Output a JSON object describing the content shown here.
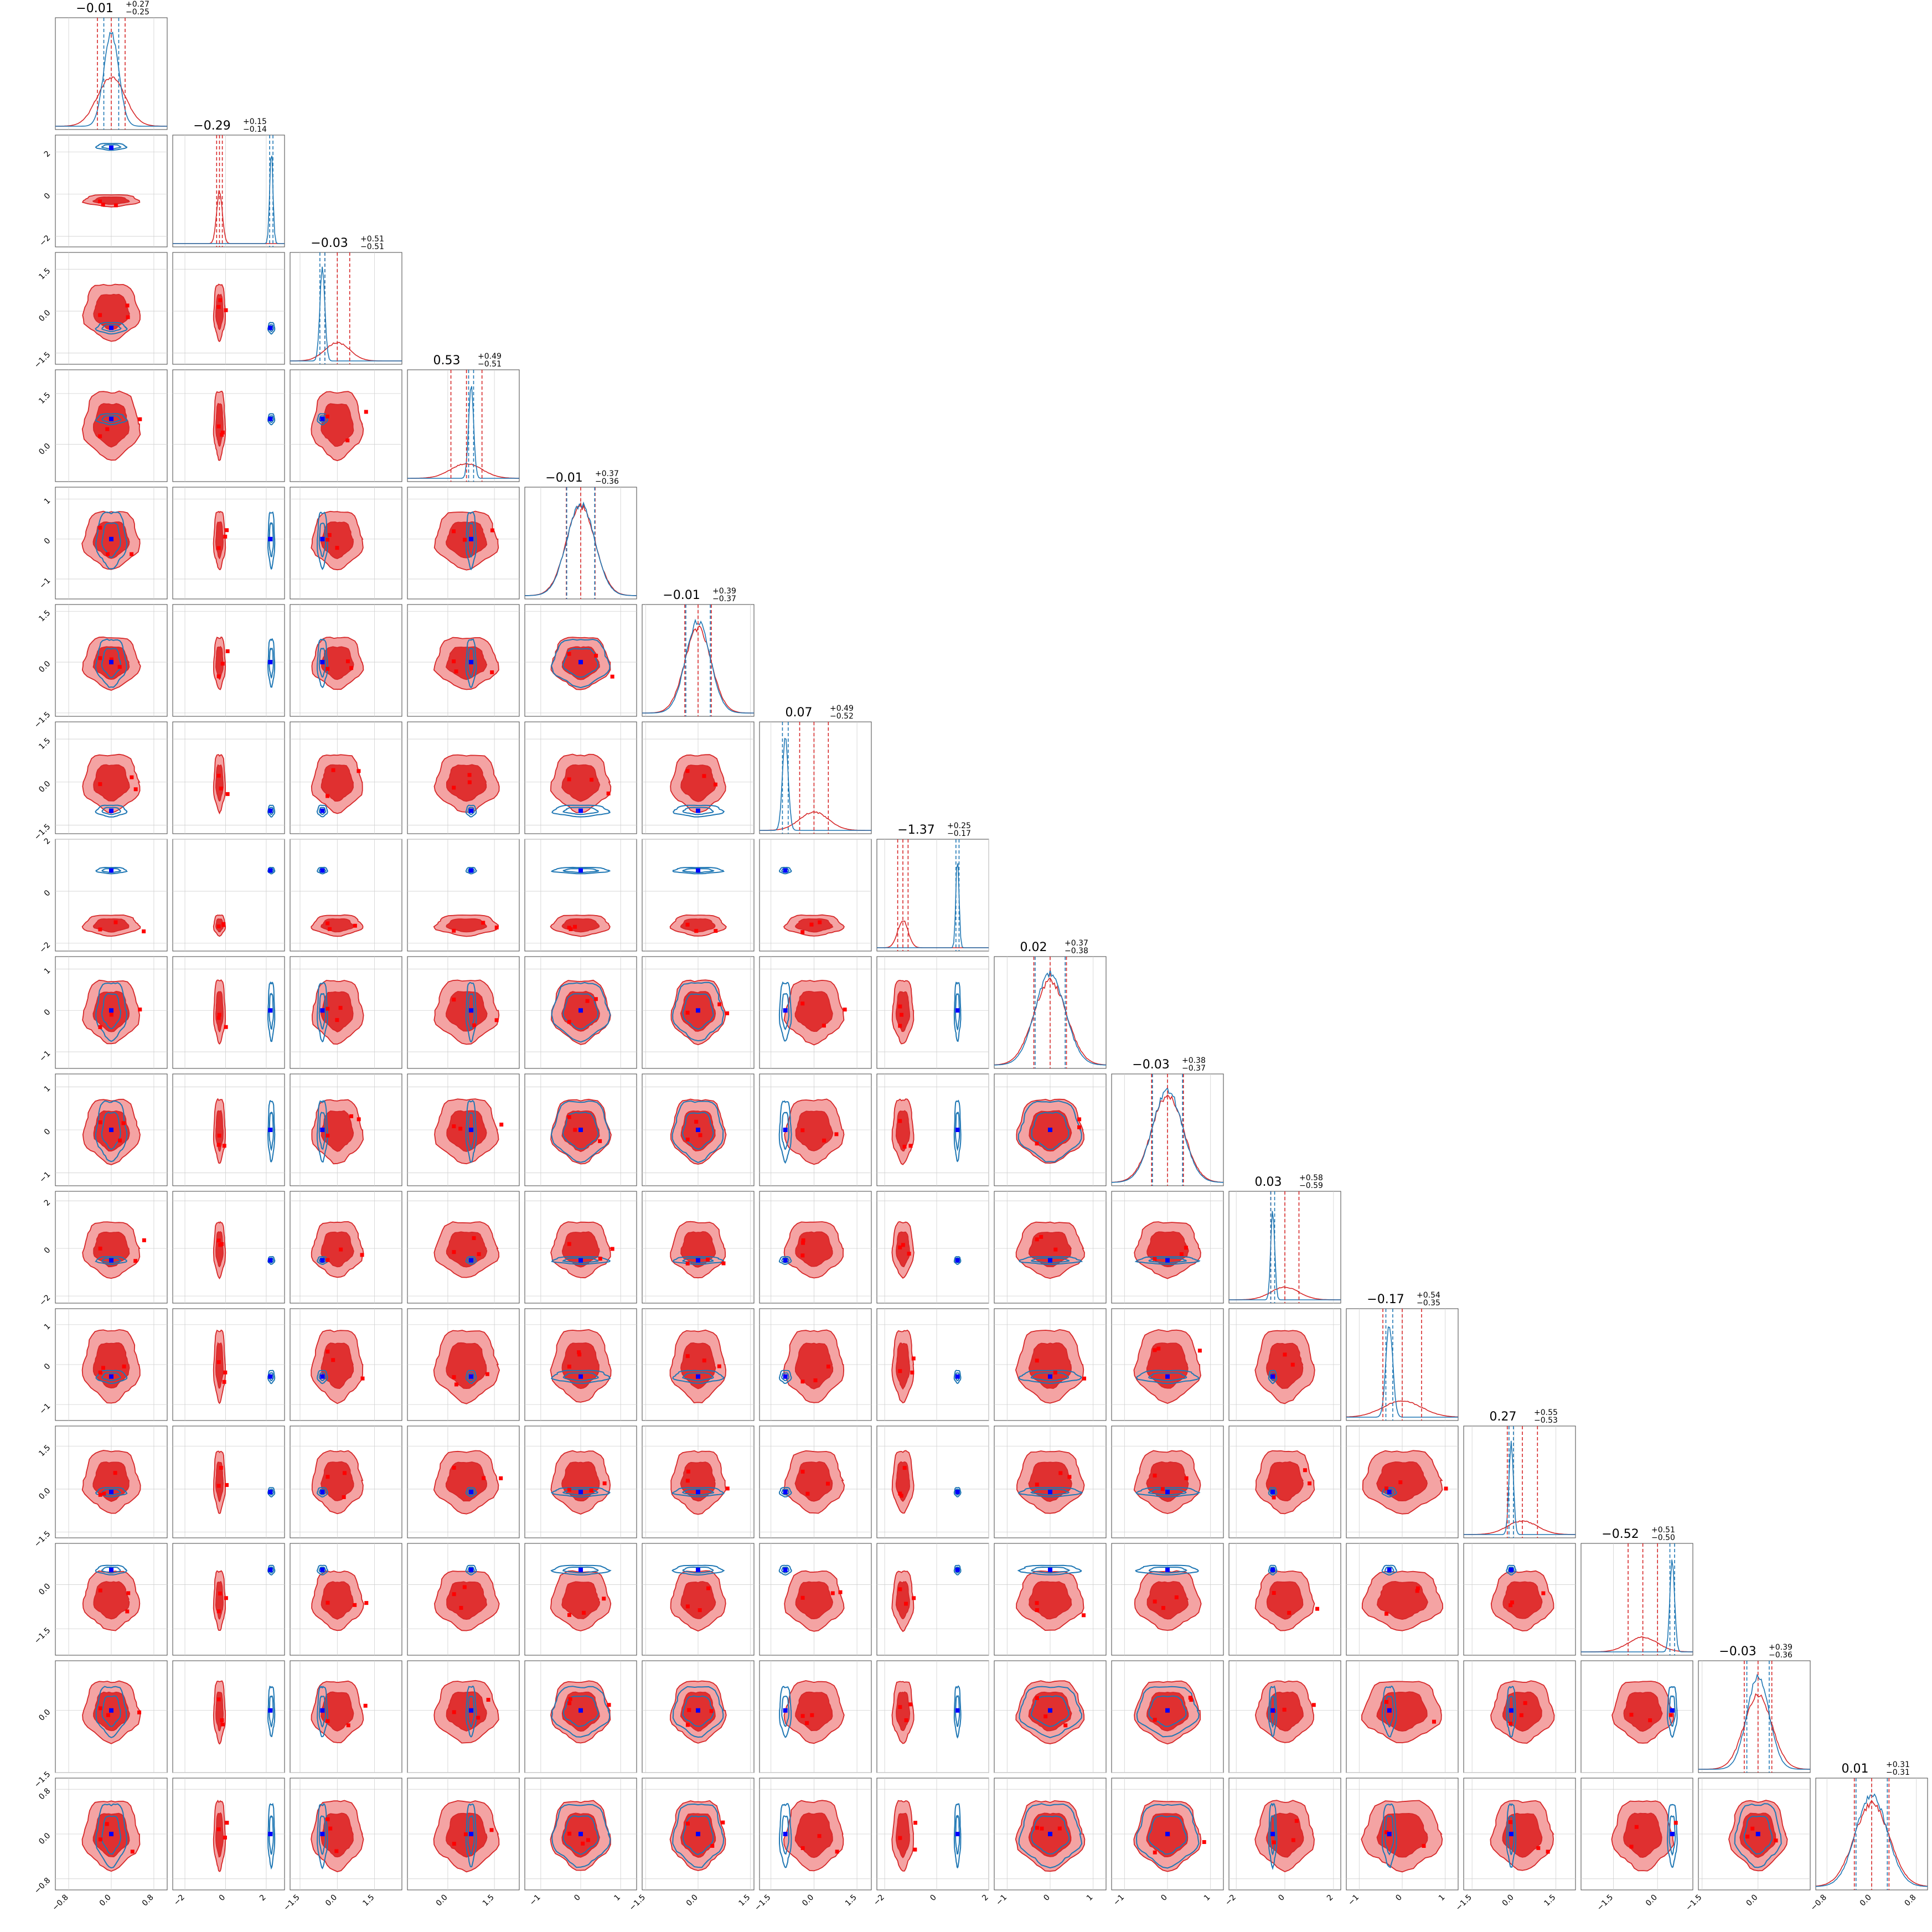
{
  "colors": {
    "posterior_a": "#d62728",
    "posterior_a_fill": "#f4a3a3",
    "posterior_a_fill_dark": "#e03030",
    "posterior_b": "#1f77b4",
    "truth_marker": "#0000ff",
    "red_points": "#ff0000",
    "grid": "#cfcfcf"
  },
  "chart_data": {
    "type": "corner",
    "n_params": 16,
    "titles": [
      {
        "med": "−0.01",
        "plus": "+0.27",
        "minus": "−0.25"
      },
      {
        "med": "−0.29",
        "plus": "+0.15",
        "minus": "−0.14"
      },
      {
        "med": "−0.03",
        "plus": "+0.51",
        "minus": "−0.51"
      },
      {
        "med": "0.53",
        "plus": "+0.49",
        "minus": "−0.51"
      },
      {
        "med": "−0.01",
        "plus": "+0.37",
        "minus": "−0.36"
      },
      {
        "med": "−0.01",
        "plus": "+0.39",
        "minus": "−0.37"
      },
      {
        "med": "0.07",
        "plus": "+0.49",
        "minus": "−0.52"
      },
      {
        "med": "−1.37",
        "plus": "+0.25",
        "minus": "−0.17"
      },
      {
        "med": "0.02",
        "plus": "+0.37",
        "minus": "−0.38"
      },
      {
        "med": "−0.03",
        "plus": "+0.38",
        "minus": "−0.37"
      },
      {
        "med": "0.03",
        "plus": "+0.58",
        "minus": "−0.59"
      },
      {
        "med": "−0.17",
        "plus": "+0.54",
        "minus": "−0.35"
      },
      {
        "med": "0.27",
        "plus": "+0.55",
        "minus": "−0.53"
      },
      {
        "med": "−0.52",
        "plus": "+0.51",
        "minus": "−0.50"
      },
      {
        "med": "−0.03",
        "plus": "+0.39",
        "minus": "−0.36"
      },
      {
        "med": "0.01",
        "plus": "+0.31",
        "minus": "−0.31"
      }
    ],
    "x_ranges": [
      [
        -1.05,
        1.05
      ],
      [
        -2.6,
        2.9
      ],
      [
        -1.9,
        2.6
      ],
      [
        -1.3,
        2.3
      ],
      [
        -1.4,
        1.4
      ],
      [
        -1.6,
        1.6
      ],
      [
        -1.9,
        2.0
      ],
      [
        -2.3,
        2.0
      ],
      [
        -1.3,
        1.3
      ],
      [
        -1.3,
        1.3
      ],
      [
        -2.3,
        2.3
      ],
      [
        -1.3,
        1.3
      ],
      [
        -1.8,
        2.2
      ],
      [
        -2.6,
        1.2
      ],
      [
        -1.6,
        1.4
      ],
      [
        -1.0,
        1.0
      ]
    ],
    "y_ranges": [
      null,
      [
        -2.5,
        2.8
      ],
      [
        -1.9,
        2.1
      ],
      [
        -1.1,
        2.2
      ],
      [
        -1.5,
        1.3
      ],
      [
        -1.6,
        1.7
      ],
      [
        -1.8,
        2.1
      ],
      [
        -2.3,
        2.0
      ],
      [
        -1.4,
        1.3
      ],
      [
        -1.3,
        1.3
      ],
      [
        -2.3,
        2.4
      ],
      [
        -1.4,
        1.4
      ],
      [
        -1.7,
        2.2
      ],
      [
        -2.4,
        1.4
      ],
      [
        -1.5,
        1.2
      ],
      [
        -1.0,
        1.0
      ]
    ],
    "x_ticks": [
      [
        "−0.8",
        "0.0",
        "0.8"
      ],
      [
        "−2",
        "0",
        "2"
      ],
      [
        "−1.5",
        "0.0",
        "1.5"
      ],
      [
        "0.0",
        "1.5"
      ],
      [
        "−1",
        "0",
        "1"
      ],
      [
        "−1.5",
        "0.0",
        "1.5"
      ],
      [
        "−1.5",
        "0.0",
        "1.5"
      ],
      [
        "−2",
        "0",
        "2"
      ],
      [
        "−1",
        "0",
        "1"
      ],
      [
        "−1",
        "0",
        "1"
      ],
      [
        "−2",
        "0",
        "2"
      ],
      [
        "−1",
        "0",
        "1"
      ],
      [
        "−1.5",
        "0.0",
        "1.5"
      ],
      [
        "−1.5",
        "0.0"
      ],
      [
        "−1.5",
        "0.0"
      ],
      [
        "−0.8",
        "0.0",
        "0.8"
      ]
    ],
    "y_ticks": [
      [],
      [
        "−2",
        "0",
        "2"
      ],
      [
        "−1.5",
        "0.0",
        "1.5"
      ],
      [
        "0.0",
        "1.5"
      ],
      [
        "−1",
        "0",
        "1"
      ],
      [
        "−1.5",
        "0.0",
        "1.5"
      ],
      [
        "−1.5",
        "0.0",
        "1.5"
      ],
      [
        "−2",
        "0",
        "2"
      ],
      [
        "−1",
        "0",
        "1"
      ],
      [
        "−1",
        "0",
        "1"
      ],
      [
        "−2",
        "0",
        "2"
      ],
      [
        "−1",
        "0",
        "1"
      ],
      [
        "−1.5",
        "0.0",
        "1.5"
      ],
      [
        "−1.5",
        "0.0"
      ],
      [
        "−1.5",
        "0.0"
      ],
      [
        "−0.8",
        "0.0",
        "0.8"
      ]
    ],
    "truth": [
      0.0,
      2.2,
      -0.6,
      0.75,
      0.0,
      0.0,
      -1.0,
      0.8,
      0.0,
      0.0,
      -0.5,
      -0.3,
      -0.1,
      0.5,
      0.0,
      0.0
    ],
    "blue_center": [
      0.0,
      2.25,
      -0.6,
      0.75,
      0.0,
      0.0,
      -1.0,
      0.8,
      0.0,
      0.0,
      -0.5,
      -0.3,
      -0.1,
      0.5,
      0.0,
      0.0
    ],
    "blue_sigma": [
      0.14,
      0.08,
      0.1,
      0.08,
      0.35,
      0.35,
      0.1,
      0.06,
      0.35,
      0.35,
      0.08,
      0.08,
      0.08,
      0.08,
      0.3,
      0.28
    ],
    "red_center": [
      0.0,
      -0.3,
      0.0,
      0.6,
      0.0,
      0.0,
      0.0,
      -1.3,
      0.0,
      0.0,
      0.0,
      0.0,
      0.3,
      -0.5,
      0.0,
      0.0
    ],
    "red_sigma": [
      0.26,
      0.14,
      0.5,
      0.5,
      0.36,
      0.38,
      0.5,
      0.2,
      0.38,
      0.37,
      0.58,
      0.45,
      0.54,
      0.5,
      0.37,
      0.31
    ]
  }
}
